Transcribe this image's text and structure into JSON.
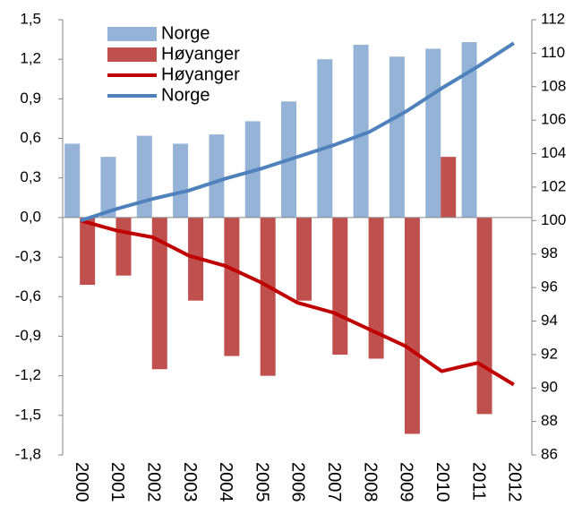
{
  "chart_data": {
    "type": "bar-line",
    "categories": [
      "2000",
      "2001",
      "2002",
      "2003",
      "2004",
      "2005",
      "2006",
      "2007",
      "2008",
      "2009",
      "2010",
      "2011",
      "2012"
    ],
    "series": [
      {
        "name": "Norge",
        "kind": "bar",
        "axis": "y",
        "color": "#95b3d7",
        "values": [
          0.56,
          0.46,
          0.62,
          0.56,
          0.63,
          0.73,
          0.88,
          1.2,
          1.31,
          1.22,
          1.28,
          1.33,
          null
        ]
      },
      {
        "name": "Høyanger",
        "kind": "bar",
        "axis": "y",
        "color": "#c0504d",
        "values": [
          -0.51,
          -0.44,
          -1.15,
          -0.63,
          -1.05,
          -1.2,
          -0.63,
          -1.04,
          -1.07,
          -1.64,
          0.46,
          -1.49,
          null
        ]
      },
      {
        "name": "Høyanger",
        "kind": "line",
        "axis": "y2",
        "color": "#c00000",
        "values": [
          100,
          99.4,
          99.0,
          97.9,
          97.3,
          96.3,
          95.1,
          94.5,
          93.5,
          92.5,
          91.0,
          91.5,
          90.2
        ]
      },
      {
        "name": "Norge",
        "kind": "line",
        "axis": "y2",
        "color": "#4f81bd",
        "values": [
          100,
          100.7,
          101.3,
          101.8,
          102.5,
          103.1,
          103.8,
          104.5,
          105.3,
          106.5,
          107.9,
          109.2,
          110.6
        ]
      }
    ],
    "ylim": [
      -1.8,
      1.5
    ],
    "yticks": [
      {
        "value": 1.5,
        "label": "1,5"
      },
      {
        "value": 1.2,
        "label": "1,2"
      },
      {
        "value": 0.9,
        "label": "0,9"
      },
      {
        "value": 0.6,
        "label": "0,6"
      },
      {
        "value": 0.3,
        "label": "0,3"
      },
      {
        "value": 0,
        "label": "0,0"
      },
      {
        "value": -0.3,
        "label": "-0,3"
      },
      {
        "value": -0.6,
        "label": "-0,6"
      },
      {
        "value": -0.9,
        "label": "-0,9"
      },
      {
        "value": -1.2,
        "label": "-1,2"
      },
      {
        "value": -1.5,
        "label": "-1,5"
      },
      {
        "value": -1.8,
        "label": "-1,8"
      }
    ],
    "y2lim": [
      86,
      112
    ],
    "y2ticks": [
      86,
      88,
      90,
      92,
      94,
      96,
      98,
      100,
      102,
      104,
      106,
      108,
      110,
      112
    ]
  }
}
